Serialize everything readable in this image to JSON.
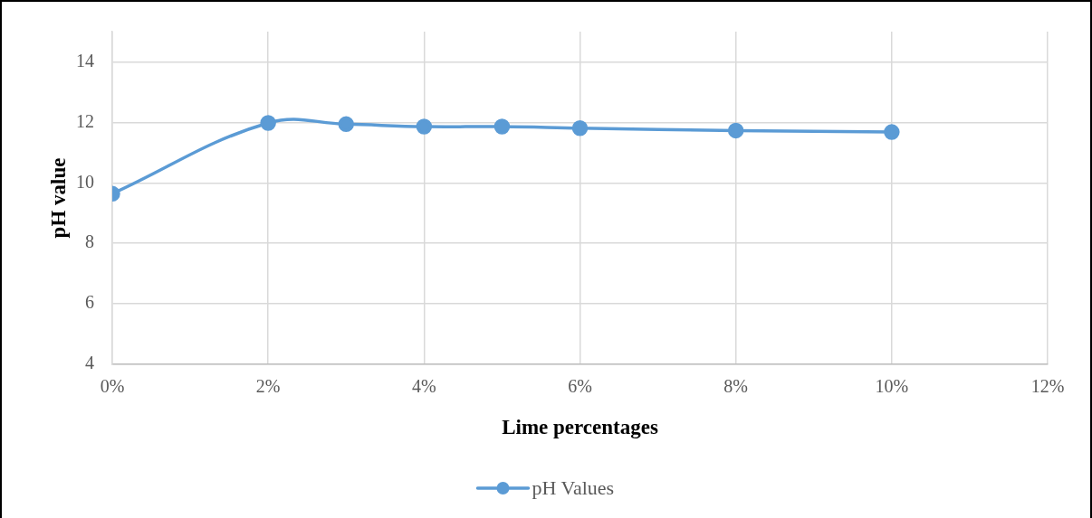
{
  "chart_data": {
    "type": "line",
    "xlabel": "Lime percentages",
    "ylabel": "pH value",
    "x": [
      0,
      2,
      3,
      4,
      5,
      6,
      8,
      10
    ],
    "series": [
      {
        "name": "pH Values",
        "color": "#5b9bd5",
        "values": [
          9.64,
          11.98,
          11.94,
          11.86,
          11.86,
          11.81,
          11.73,
          11.68
        ]
      }
    ],
    "xlim": [
      0,
      12
    ],
    "xticks": [
      {
        "value": 0,
        "label": "0%"
      },
      {
        "value": 2,
        "label": "2%"
      },
      {
        "value": 4,
        "label": "4%"
      },
      {
        "value": 6,
        "label": "6%"
      },
      {
        "value": 8,
        "label": "8%"
      },
      {
        "value": 10,
        "label": "10%"
      },
      {
        "value": 12,
        "label": "12%"
      }
    ],
    "ylim": [
      4,
      15
    ],
    "yticks": [
      4,
      6,
      8,
      10,
      12,
      14
    ],
    "grid": true,
    "legend": "bottom",
    "marker": "circle",
    "line_style": "solid"
  }
}
